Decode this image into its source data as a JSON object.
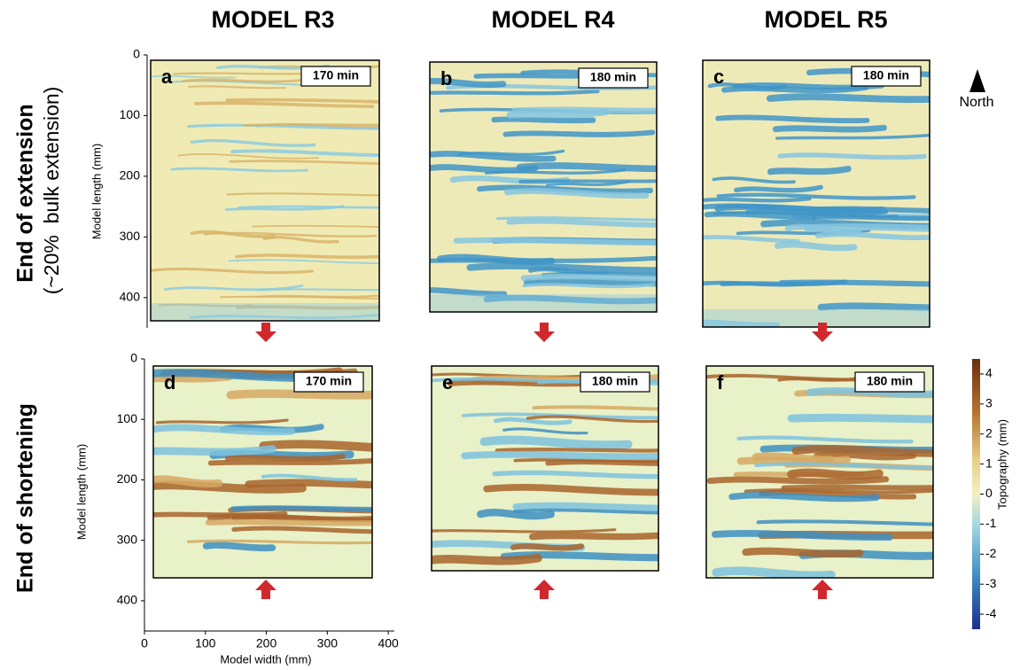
{
  "columns": [
    "MODEL R3",
    "MODEL R4",
    "MODEL R5"
  ],
  "rows": [
    {
      "label": "End of extension",
      "sublabel": "(~20%  bulk extension)"
    },
    {
      "label": "End of shortening"
    }
  ],
  "panels": [
    {
      "letter": "a",
      "time": "170 min"
    },
    {
      "letter": "b",
      "time": "180 min"
    },
    {
      "letter": "c",
      "time": "180 min"
    },
    {
      "letter": "d",
      "time": "170 min"
    },
    {
      "letter": "e",
      "time": "180 min"
    },
    {
      "letter": "f",
      "time": "180 min"
    }
  ],
  "north": "North",
  "top_axis": {
    "label": "Model length (mm)",
    "ylim": [
      0,
      450
    ],
    "yticks": [
      0,
      100,
      200,
      300,
      400
    ]
  },
  "bottom_axis": {
    "ylabel": "Model length (mm)",
    "xlabel": "Model width (mm)",
    "ylim": [
      0,
      450
    ],
    "yticks": [
      0,
      100,
      200,
      300,
      400
    ],
    "xlim": [
      0,
      410
    ],
    "xticks": [
      0,
      100,
      200,
      300,
      400
    ]
  },
  "colorbar": {
    "label": "Topography (mm)",
    "lim": [
      -4.5,
      4.5
    ],
    "ticks": [
      4,
      3,
      2,
      1,
      0,
      -1,
      -2,
      -3,
      -4
    ]
  }
}
